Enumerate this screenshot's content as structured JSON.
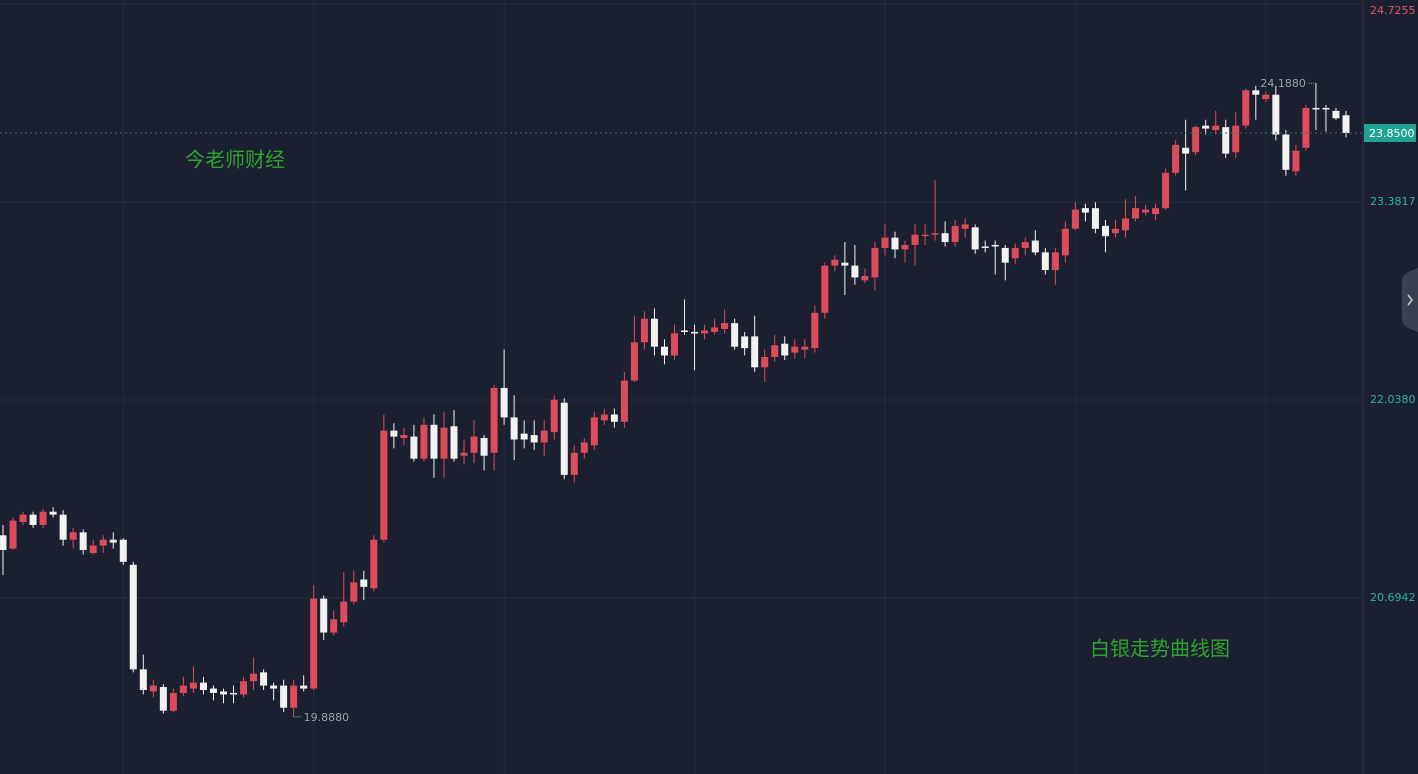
{
  "chart_data": {
    "type": "candlestick",
    "watermark": "今老师财经",
    "caption": "白银走势曲线图",
    "up_color": "#dc4c5b",
    "down_color": "#f2f2f2",
    "grid": true,
    "ylim": [
      19.5,
      24.7255
    ],
    "yticks": [
      20.6942,
      {
        "value": 22.038,
        "label": "22.0380"
      },
      23.3817,
      24.7255
    ],
    "last_price": {
      "value": 23.85,
      "label": "23.8500"
    },
    "annotations": [
      {
        "value": 24.188,
        "label": "24.1880"
      },
      {
        "value": 19.888,
        "label": "19.8880"
      }
    ],
    "open": [
      21.12,
      21.03,
      21.21,
      21.26,
      21.19,
      21.28,
      21.26,
      21.09,
      21.14,
      21.0,
      21.05,
      21.09,
      21.09,
      20.92,
      20.21,
      20.06,
      20.09,
      19.93,
      20.05,
      20.08,
      20.12,
      20.08,
      20.06,
      20.05,
      20.04,
      20.13,
      20.19,
      20.1,
      20.1,
      19.95,
      20.1,
      20.08,
      20.69,
      20.46,
      20.53,
      20.67,
      20.82,
      20.76,
      21.09,
      21.83,
      21.78,
      21.79,
      21.64,
      21.87,
      21.64,
      21.86,
      21.66,
      21.68,
      21.78,
      21.68,
      22.12,
      21.92,
      21.81,
      21.8,
      21.75,
      21.82,
      22.02,
      21.53,
      21.68,
      21.73,
      21.9,
      21.94,
      21.89,
      22.17,
      22.43,
      22.59,
      22.4,
      22.34,
      22.51,
      22.5,
      22.49,
      22.5,
      22.52,
      22.56,
      22.47,
      22.47,
      22.26,
      22.33,
      22.42,
      22.36,
      22.38,
      22.39,
      22.63,
      22.95,
      22.97,
      22.95,
      22.85,
      22.87,
      23.07,
      23.14,
      23.06,
      23.09,
      23.15,
      23.16,
      23.17,
      23.11,
      23.2,
      23.21,
      23.08,
      23.09,
      23.07,
      23.0,
      23.07,
      23.12,
      23.04,
      22.92,
      23.02,
      23.2,
      23.34,
      23.34,
      23.22,
      23.17,
      23.19,
      23.27,
      23.31,
      23.3,
      23.34,
      23.58,
      23.75,
      23.72,
      23.9,
      23.87,
      23.89,
      23.72,
      23.9,
      24.14,
      24.08,
      24.11,
      23.84,
      23.59,
      23.75,
      24.02,
      24.02,
      24.0,
      23.97
    ],
    "high": [
      21.19,
      21.24,
      21.28,
      21.28,
      21.3,
      21.31,
      21.29,
      21.17,
      21.16,
      21.09,
      21.12,
      21.14,
      21.1,
      20.94,
      20.31,
      20.14,
      20.11,
      20.08,
      20.16,
      20.23,
      20.16,
      20.1,
      20.08,
      20.1,
      20.16,
      20.29,
      20.21,
      20.12,
      20.14,
      20.14,
      20.17,
      20.78,
      20.71,
      20.61,
      20.87,
      20.88,
      20.88,
      21.12,
      21.94,
      21.88,
      21.85,
      21.87,
      21.92,
      21.94,
      21.96,
      21.97,
      21.77,
      21.9,
      21.8,
      22.14,
      22.38,
      22.07,
      21.9,
      21.9,
      21.9,
      22.07,
      22.05,
      21.73,
      21.78,
      21.96,
      21.98,
      21.98,
      22.23,
      22.61,
      22.64,
      22.66,
      22.45,
      22.55,
      22.72,
      22.55,
      22.55,
      22.59,
      22.65,
      22.59,
      22.5,
      22.61,
      22.38,
      22.48,
      22.47,
      22.45,
      22.45,
      22.68,
      22.97,
      23.02,
      23.11,
      23.09,
      22.93,
      23.11,
      23.23,
      23.18,
      23.12,
      23.23,
      23.23,
      23.53,
      23.25,
      23.26,
      23.27,
      23.23,
      23.12,
      23.12,
      23.09,
      23.1,
      23.14,
      23.19,
      23.07,
      23.07,
      23.25,
      23.38,
      23.37,
      23.38,
      23.26,
      23.26,
      23.4,
      23.42,
      23.36,
      23.37,
      23.61,
      23.8,
      23.94,
      23.9,
      23.94,
      24.0,
      23.94,
      23.99,
      24.15,
      24.17,
      24.13,
      24.17,
      23.87,
      23.77,
      24.04,
      24.188,
      24.04,
      24.02,
      24.0
    ],
    "low": [
      20.85,
      21.02,
      21.19,
      21.17,
      21.17,
      21.24,
      21.05,
      21.03,
      20.99,
      20.99,
      21.0,
      21.03,
      20.92,
      20.19,
      20.04,
      20.02,
      19.91,
      19.92,
      20.03,
      20.05,
      20.04,
      20.0,
      19.98,
      19.98,
      20.02,
      20.07,
      20.07,
      20.0,
      19.92,
      19.888,
      20.06,
      20.07,
      20.41,
      20.44,
      20.5,
      20.65,
      20.68,
      20.74,
      21.07,
      21.71,
      21.73,
      21.62,
      21.62,
      21.51,
      21.51,
      21.62,
      21.6,
      21.61,
      21.56,
      21.56,
      21.87,
      21.63,
      21.71,
      21.7,
      21.66,
      21.77,
      21.5,
      21.48,
      21.64,
      21.7,
      21.87,
      21.85,
      21.85,
      22.16,
      22.38,
      22.34,
      22.28,
      22.31,
      22.48,
      22.24,
      22.45,
      22.48,
      22.49,
      22.38,
      22.34,
      22.23,
      22.16,
      22.3,
      22.31,
      22.32,
      22.32,
      22.36,
      22.59,
      22.91,
      22.75,
      22.82,
      22.83,
      22.78,
      23.02,
      23.0,
      22.97,
      22.95,
      23.09,
      23.12,
      23.08,
      23.08,
      23.14,
      23.03,
      23.04,
      22.89,
      22.85,
      22.96,
      23.02,
      23.02,
      22.89,
      22.82,
      22.97,
      23.19,
      23.25,
      23.17,
      23.04,
      23.14,
      23.14,
      23.25,
      23.29,
      23.26,
      23.33,
      23.56,
      23.46,
      23.7,
      23.84,
      23.84,
      23.68,
      23.68,
      23.88,
      23.94,
      24.06,
      23.8,
      23.56,
      23.56,
      23.73,
      23.87,
      23.86,
      23.94,
      23.82
    ],
    "close": [
      21.02,
      21.22,
      21.26,
      21.19,
      21.28,
      21.26,
      21.09,
      21.14,
      21.02,
      21.05,
      21.09,
      21.07,
      20.94,
      20.21,
      20.07,
      20.1,
      19.93,
      20.05,
      20.1,
      20.12,
      20.07,
      20.05,
      20.04,
      20.04,
      20.13,
      20.18,
      20.1,
      20.08,
      19.95,
      20.1,
      20.08,
      20.69,
      20.46,
      20.55,
      20.67,
      20.8,
      20.77,
      21.09,
      21.83,
      21.79,
      21.8,
      21.64,
      21.87,
      21.64,
      21.85,
      21.64,
      21.68,
      21.79,
      21.66,
      22.12,
      21.92,
      21.77,
      21.77,
      21.75,
      21.83,
      22.04,
      21.53,
      21.68,
      21.75,
      21.92,
      21.94,
      21.89,
      22.17,
      22.43,
      22.59,
      22.4,
      22.34,
      22.49,
      22.5,
      22.49,
      22.51,
      22.53,
      22.56,
      22.4,
      22.39,
      22.26,
      22.33,
      22.41,
      22.34,
      22.4,
      22.4,
      22.63,
      22.95,
      22.99,
      22.95,
      22.87,
      22.88,
      23.07,
      23.14,
      23.06,
      23.09,
      23.16,
      23.16,
      23.17,
      23.11,
      23.22,
      23.23,
      23.06,
      23.07,
      23.08,
      22.97,
      23.07,
      23.11,
      23.04,
      22.92,
      23.04,
      23.2,
      23.33,
      23.31,
      23.2,
      23.15,
      23.2,
      23.27,
      23.34,
      23.33,
      23.34,
      23.58,
      23.77,
      23.71,
      23.89,
      23.88,
      23.9,
      23.71,
      23.9,
      24.14,
      24.11,
      24.11,
      23.84,
      23.6,
      23.73,
      24.02,
      24.01,
      24.01,
      23.95,
      23.85
    ]
  }
}
